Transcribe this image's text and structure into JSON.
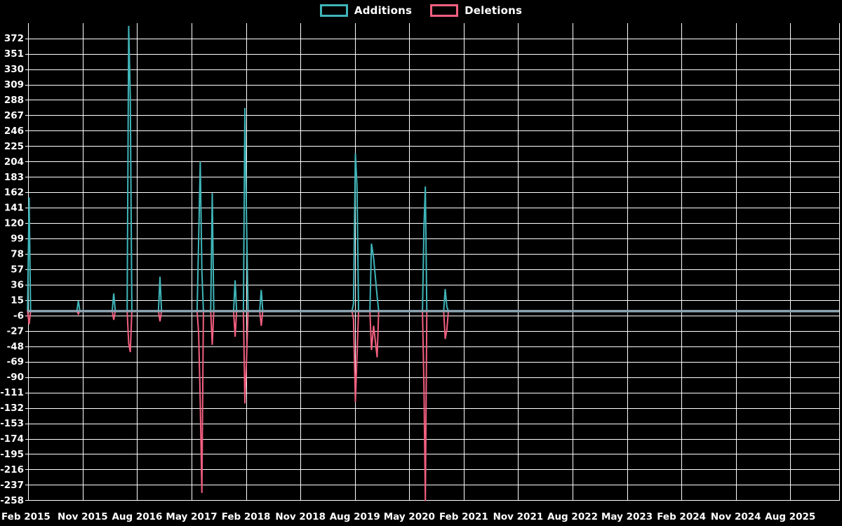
{
  "legend": {
    "items": [
      {
        "label": "Additions",
        "color": "#3fb5b9"
      },
      {
        "label": "Deletions",
        "color": "#f25f7f"
      }
    ]
  },
  "colors": {
    "background": "#000000",
    "grid": "#ffffff",
    "tick_text": "#ffffff",
    "zero_baseline": "#8ca4b2",
    "additions": "#3fb5b9",
    "deletions": "#f25f7f"
  },
  "chart_data": {
    "type": "line",
    "title": "",
    "xlabel": "",
    "ylabel": "",
    "legend_position": "top-center",
    "grid": true,
    "x_tick_labels": [
      "Feb 2015",
      "Nov 2015",
      "Aug 2016",
      "May 2017",
      "Feb 2018",
      "Nov 2018",
      "Aug 2019",
      "May 2020",
      "Feb 2021",
      "Nov 2021",
      "Aug 2022",
      "May 2023",
      "Feb 2024",
      "Nov 2024",
      "Aug 2025"
    ],
    "x_tick_interval": "9 months",
    "y_ticks": [
      372,
      351,
      330,
      309,
      288,
      267,
      246,
      225,
      204,
      183,
      162,
      141,
      120,
      99,
      78,
      57,
      36,
      15,
      -6,
      -27,
      -48,
      -69,
      -90,
      -111,
      -132,
      -153,
      -174,
      -195,
      -216,
      -237,
      -258
    ],
    "ylim": [
      -261,
      393
    ],
    "x_axis_note": "series x values are in x-tick index units (0 = Feb 2015 gridline, 1 = Nov 2015, ... 14 = Aug 2025); values between spikes are 0",
    "series": [
      {
        "name": "Additions",
        "color": "#3fb5b9",
        "points": [
          [
            0.015,
            155
          ],
          [
            0.92,
            14
          ],
          [
            1.57,
            24
          ],
          [
            1.845,
            389
          ],
          [
            1.875,
            290
          ],
          [
            2.42,
            47
          ],
          [
            3.13,
            97
          ],
          [
            3.16,
            204
          ],
          [
            3.19,
            55
          ],
          [
            3.38,
            161
          ],
          [
            3.8,
            42
          ],
          [
            3.98,
            277
          ],
          [
            4.01,
            120
          ],
          [
            4.28,
            29
          ],
          [
            5.975,
            10
          ],
          [
            6.01,
            215
          ],
          [
            6.04,
            170
          ],
          [
            6.305,
            92
          ],
          [
            6.345,
            72
          ],
          [
            6.41,
            20
          ],
          [
            7.27,
            115
          ],
          [
            7.295,
            170
          ],
          [
            7.66,
            30
          ],
          [
            7.69,
            6
          ]
        ]
      },
      {
        "name": "Deletions",
        "color": "#f25f7f",
        "points": [
          [
            0.015,
            -18
          ],
          [
            0.92,
            -4
          ],
          [
            1.57,
            -12
          ],
          [
            1.845,
            -44
          ],
          [
            1.875,
            -56
          ],
          [
            2.42,
            -14
          ],
          [
            3.13,
            -30
          ],
          [
            3.16,
            -124
          ],
          [
            3.19,
            -248
          ],
          [
            3.38,
            -46
          ],
          [
            3.8,
            -35
          ],
          [
            3.98,
            -126
          ],
          [
            4.01,
            -65
          ],
          [
            4.28,
            -20
          ],
          [
            5.975,
            -11
          ],
          [
            6.01,
            -124
          ],
          [
            6.04,
            -60
          ],
          [
            6.305,
            -53
          ],
          [
            6.345,
            -20
          ],
          [
            6.41,
            -63
          ],
          [
            7.27,
            -102
          ],
          [
            7.295,
            -259
          ],
          [
            7.66,
            -38
          ],
          [
            7.69,
            -26
          ]
        ]
      }
    ],
    "zero_baseline": 0
  }
}
